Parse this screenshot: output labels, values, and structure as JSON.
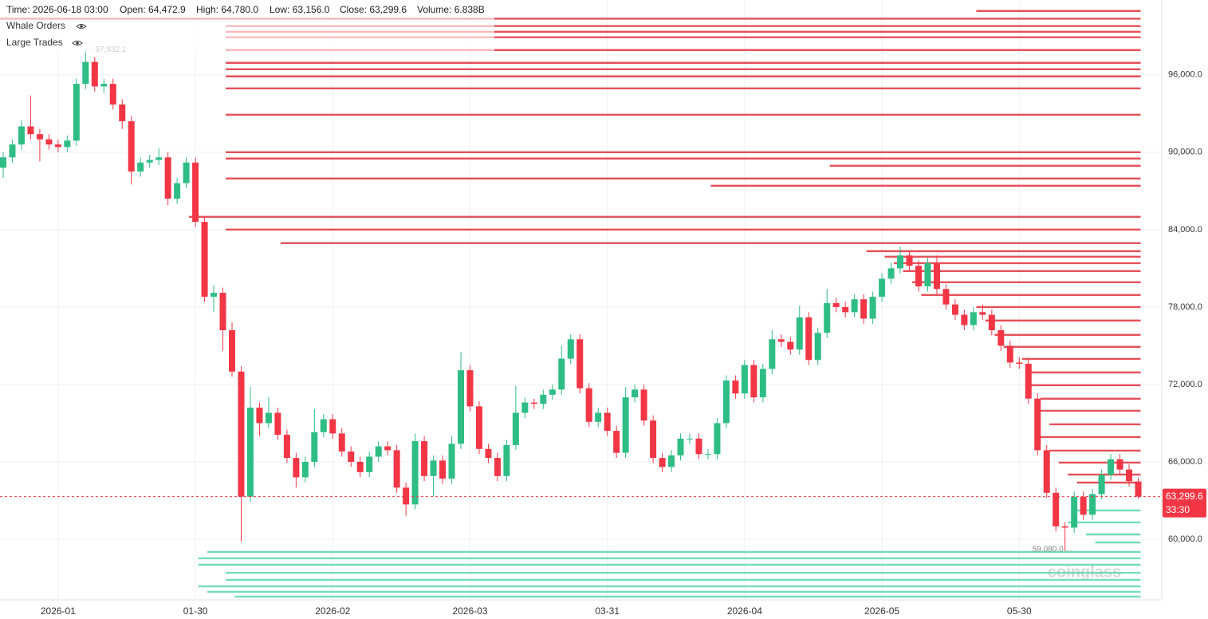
{
  "chart_data": {
    "type": "candlestick",
    "header": [
      "Time: 2026-06-18 03:00",
      "Open: 64,472.9",
      "High: 64,780.0",
      "Low: 63,156.0",
      "Close: 63,299.6",
      "Volume: 6.838B"
    ],
    "legend": [
      "Whale Orders",
      "Large Trades"
    ],
    "watermark": "coinglass",
    "up_color": "#2ebd85",
    "down_color": "#f23645",
    "ask_color": "#e0323e",
    "bid_color": "#5ad8ad",
    "grid": true,
    "ylim": [
      55300,
      101800
    ],
    "yticks": [
      {
        "value": 60000,
        "label": "60,000.0"
      },
      {
        "value": 66000,
        "label": "66,000.0"
      },
      {
        "value": 72000,
        "label": "72,000.0"
      },
      {
        "value": 78000,
        "label": "78,000.0"
      },
      {
        "value": 84000,
        "label": "84,000.0"
      },
      {
        "value": 90000,
        "label": "90,000.0"
      },
      {
        "value": 96000,
        "label": "96,000.0"
      }
    ],
    "xticks": [
      {
        "value": 6,
        "label": "2026-01"
      },
      {
        "value": 21,
        "label": "01-30"
      },
      {
        "value": 36,
        "label": "2026-02"
      },
      {
        "value": 51,
        "label": "2026-03"
      },
      {
        "value": 66,
        "label": "03-31"
      },
      {
        "value": 81,
        "label": "2026-04"
      },
      {
        "value": 96,
        "label": "2026-05"
      },
      {
        "value": 111,
        "label": "05-30"
      }
    ],
    "open": [
      88800,
      89600,
      90600,
      92000,
      91400,
      91000,
      90600,
      90400,
      90900,
      95300,
      97000,
      95100,
      95300,
      93700,
      92400,
      88500,
      89200,
      89400,
      89600,
      86400,
      87600,
      89200,
      84600,
      78800,
      79100,
      76200,
      73000,
      63300,
      70200,
      69000,
      69800,
      68100,
      66300,
      64800,
      66000,
      68300,
      69300,
      68200,
      66800,
      66000,
      65200,
      66400,
      67200,
      66900,
      64000,
      62700,
      67600,
      64900,
      66100,
      64700,
      67400,
      73100,
      70300,
      67000,
      66300,
      64900,
      67300,
      69800,
      70600,
      70500,
      71200,
      71600,
      74000,
      75500,
      71700,
      69100,
      69800,
      68400,
      66700,
      71000,
      71600,
      69200,
      66300,
      65600,
      66500,
      67800,
      67800,
      66600,
      66600,
      69000,
      72300,
      71300,
      73500,
      71000,
      73200,
      75500,
      75300,
      74700,
      77200,
      73900,
      76000,
      78300,
      78000,
      77600,
      78600,
      77100,
      78800,
      80200,
      81000,
      82000,
      81200,
      79600,
      81400,
      79400,
      78200,
      77400,
      76600,
      77600,
      77400,
      76200,
      75000,
      73700,
      73600,
      70900,
      66900,
      63600,
      61000,
      60900,
      63300,
      61900,
      63500,
      65000,
      66200,
      65400,
      64472.9
    ],
    "high": [
      90000,
      91000,
      92500,
      94400,
      91800,
      91400,
      91000,
      91300,
      95700,
      97932.1,
      97400,
      95700,
      95700,
      94100,
      92800,
      89600,
      89800,
      90300,
      90000,
      88000,
      89600,
      89600,
      85000,
      79700,
      79500,
      76800,
      73400,
      71800,
      70600,
      71000,
      70200,
      68500,
      66700,
      66400,
      70100,
      69700,
      69700,
      68600,
      67200,
      66400,
      66800,
      67600,
      67600,
      67300,
      64400,
      68200,
      68000,
      66500,
      66500,
      68000,
      74500,
      73500,
      70700,
      67400,
      66700,
      67700,
      71900,
      71000,
      70900,
      71600,
      72000,
      75000,
      75900,
      75900,
      72100,
      70200,
      70200,
      68800,
      71800,
      72000,
      72000,
      69600,
      66700,
      66900,
      68200,
      68200,
      68200,
      67000,
      69400,
      72700,
      72700,
      73900,
      73900,
      73600,
      76200,
      75900,
      75700,
      78100,
      77600,
      76400,
      79400,
      78700,
      78400,
      79000,
      79000,
      79200,
      80600,
      81400,
      82700,
      82400,
      81600,
      81800,
      82000,
      79800,
      78600,
      77800,
      78000,
      78200,
      77800,
      76600,
      75400,
      74100,
      74000,
      71300,
      67300,
      64000,
      61300,
      63700,
      63700,
      63900,
      65400,
      66600,
      66600,
      65800,
      64780
    ],
    "low": [
      88000,
      89200,
      90200,
      91000,
      89300,
      90200,
      90000,
      90000,
      90500,
      94900,
      94700,
      94600,
      93300,
      91800,
      87500,
      88100,
      88800,
      89000,
      85900,
      86000,
      87200,
      84200,
      78400,
      77600,
      74600,
      72600,
      59800,
      62900,
      68000,
      68600,
      67700,
      65900,
      64000,
      64400,
      65600,
      67900,
      67800,
      66400,
      65600,
      64800,
      64800,
      66000,
      66500,
      63600,
      61800,
      62300,
      64500,
      63300,
      64300,
      64300,
      67000,
      69900,
      66600,
      65900,
      64500,
      64500,
      66900,
      69400,
      70100,
      70100,
      70800,
      71200,
      73600,
      71300,
      68700,
      68700,
      68000,
      66300,
      66300,
      70600,
      68800,
      65900,
      65200,
      65200,
      66100,
      67400,
      66200,
      66200,
      66200,
      68600,
      70900,
      70900,
      70600,
      70600,
      72800,
      74900,
      74300,
      74300,
      73500,
      73500,
      75600,
      77600,
      77200,
      77200,
      76700,
      76700,
      78400,
      79800,
      80600,
      80800,
      79200,
      79200,
      79000,
      77800,
      77000,
      76200,
      76200,
      77000,
      75800,
      74600,
      73300,
      73200,
      70500,
      66500,
      63200,
      60600,
      59080,
      60500,
      61500,
      61500,
      63100,
      64600,
      65000,
      64100,
      63156
    ],
    "close": [
      89600,
      90600,
      92000,
      91400,
      91000,
      90600,
      90400,
      90900,
      95300,
      97000,
      95100,
      95300,
      93700,
      92400,
      88500,
      89200,
      89400,
      89600,
      86400,
      87600,
      89200,
      84600,
      78800,
      79100,
      76200,
      73000,
      63300,
      70200,
      69000,
      69800,
      68100,
      66300,
      64800,
      66000,
      68300,
      69300,
      68200,
      66800,
      66000,
      65200,
      66400,
      67200,
      66900,
      64000,
      62700,
      67600,
      64900,
      66100,
      64700,
      67400,
      73100,
      70300,
      67000,
      66300,
      64900,
      67300,
      69800,
      70600,
      70500,
      71200,
      71600,
      74000,
      75500,
      71700,
      69100,
      69800,
      68400,
      66700,
      71000,
      71600,
      69200,
      66300,
      65600,
      66500,
      67800,
      67800,
      66600,
      66600,
      69000,
      72300,
      71300,
      73500,
      71000,
      73200,
      75500,
      75300,
      74700,
      77200,
      73900,
      76000,
      78300,
      78000,
      77600,
      78600,
      77100,
      78800,
      80200,
      81000,
      82000,
      81200,
      79600,
      81400,
      79400,
      78200,
      77400,
      76600,
      77600,
      77400,
      76200,
      75000,
      73700,
      73600,
      70900,
      66900,
      63600,
      61000,
      60900,
      63300,
      61900,
      63500,
      65000,
      66200,
      65400,
      64500,
      63299.6
    ],
    "annotations": [
      {
        "label": "97,932.1",
        "value": 97932.1,
        "index": 9
      },
      {
        "label": "59,080.0",
        "value": 59080,
        "index": 116
      }
    ],
    "last_price_label": "63,299.6",
    "countdown": "33:30",
    "asks": [
      {
        "price": 100950,
        "start": 107
      },
      {
        "price": 100350,
        "start": 0
      },
      {
        "price": 99780,
        "start": 25
      },
      {
        "price": 99340,
        "start": 25
      },
      {
        "price": 98910,
        "start": 25
      },
      {
        "price": 97920,
        "start": 25
      },
      {
        "price": 96930,
        "start": 25
      },
      {
        "price": 96430,
        "start": 25
      },
      {
        "price": 95880,
        "start": 25
      },
      {
        "price": 94950,
        "start": 25
      },
      {
        "price": 92910,
        "start": 25
      },
      {
        "price": 90000,
        "start": 25
      },
      {
        "price": 89510,
        "start": 25
      },
      {
        "price": 88950,
        "start": 91
      },
      {
        "price": 87960,
        "start": 25
      },
      {
        "price": 87400,
        "start": 78
      },
      {
        "price": 84990,
        "start": 21
      },
      {
        "price": 84000,
        "start": 25
      },
      {
        "price": 82950,
        "start": 31
      },
      {
        "price": 82330,
        "start": 95
      },
      {
        "price": 81900,
        "start": 97
      },
      {
        "price": 81400,
        "start": 98
      },
      {
        "price": 80790,
        "start": 99
      },
      {
        "price": 79920,
        "start": 100
      },
      {
        "price": 78930,
        "start": 101
      },
      {
        "price": 78000,
        "start": 107
      },
      {
        "price": 76950,
        "start": 108
      },
      {
        "price": 75840,
        "start": 109
      },
      {
        "price": 74910,
        "start": 110
      },
      {
        "price": 73980,
        "start": 112
      },
      {
        "price": 72930,
        "start": 113
      },
      {
        "price": 71940,
        "start": 113
      },
      {
        "price": 70890,
        "start": 114
      },
      {
        "price": 69960,
        "start": 114
      },
      {
        "price": 68910,
        "start": 115
      },
      {
        "price": 67920,
        "start": 114
      },
      {
        "price": 66870,
        "start": 115
      },
      {
        "price": 65940,
        "start": 116
      },
      {
        "price": 65010,
        "start": 117
      },
      {
        "price": 64390,
        "start": 118
      }
    ],
    "bids": [
      {
        "price": 62230,
        "start": 118
      },
      {
        "price": 61300,
        "start": 117
      },
      {
        "price": 60370,
        "start": 119
      },
      {
        "price": 59750,
        "start": 120
      },
      {
        "price": 59010,
        "start": 23
      },
      {
        "price": 58520,
        "start": 22
      },
      {
        "price": 58020,
        "start": 22
      },
      {
        "price": 57400,
        "start": 25
      },
      {
        "price": 56850,
        "start": 25
      },
      {
        "price": 56350,
        "start": 22
      },
      {
        "price": 55920,
        "start": 23
      },
      {
        "price": 55550,
        "start": 26
      }
    ]
  }
}
